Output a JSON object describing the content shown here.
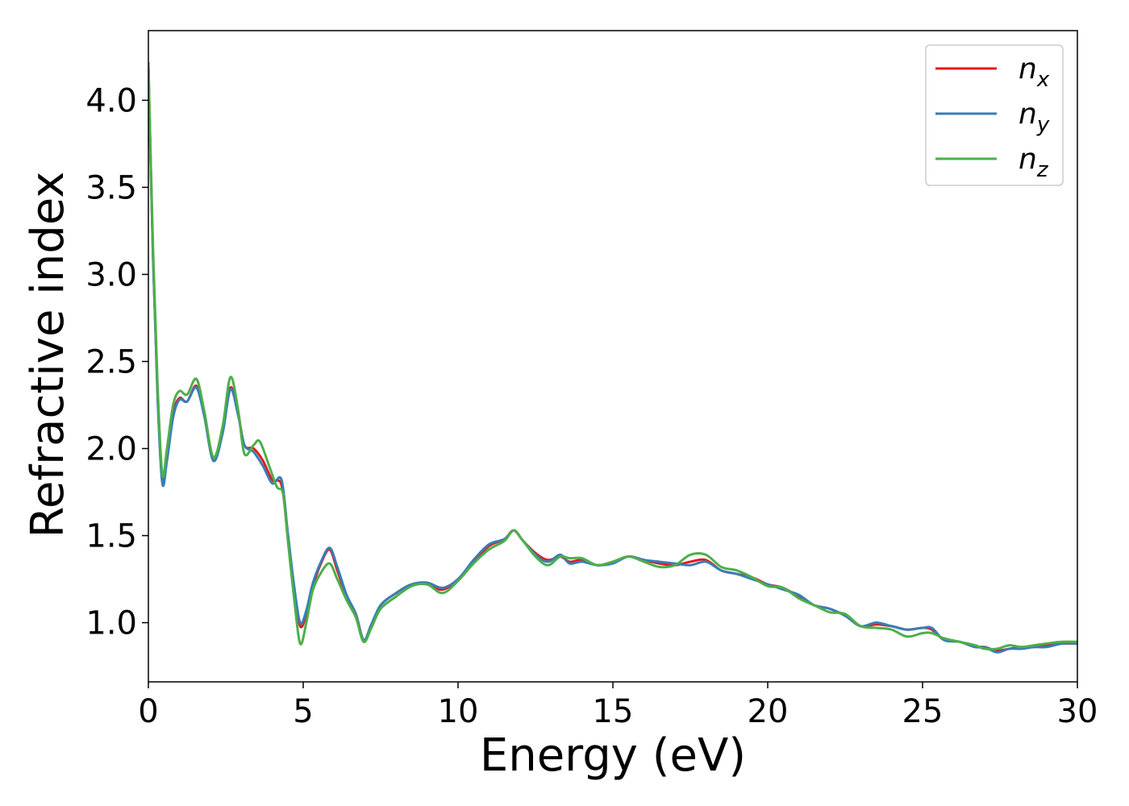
{
  "chart_data": {
    "type": "line",
    "title": "",
    "xlabel": "Energy (eV)",
    "ylabel": "Refractive index",
    "xlim": [
      0,
      30
    ],
    "ylim": [
      0.66,
      4.4
    ],
    "xticks": [
      0,
      5,
      10,
      15,
      20,
      25,
      30
    ],
    "yticks": [
      1.0,
      1.5,
      2.0,
      2.5,
      3.0,
      3.5,
      4.0
    ],
    "grid": false,
    "legend_position": "top-right",
    "series": [
      {
        "name": "n",
        "subscript": "x",
        "color": "#e41a1c",
        "points": [
          [
            0,
            4.2
          ],
          [
            0.15,
            3.1
          ],
          [
            0.3,
            2.3
          ],
          [
            0.45,
            1.82
          ],
          [
            0.6,
            1.95
          ],
          [
            0.8,
            2.2
          ],
          [
            1.0,
            2.29
          ],
          [
            1.25,
            2.27
          ],
          [
            1.55,
            2.36
          ],
          [
            1.8,
            2.2
          ],
          [
            2.1,
            1.93
          ],
          [
            2.4,
            2.1
          ],
          [
            2.65,
            2.35
          ],
          [
            2.9,
            2.2
          ],
          [
            3.1,
            2.02
          ],
          [
            3.4,
            2.0
          ],
          [
            3.7,
            1.93
          ],
          [
            4.0,
            1.82
          ],
          [
            4.3,
            1.79
          ],
          [
            4.5,
            1.5
          ],
          [
            4.7,
            1.2
          ],
          [
            4.9,
            0.98
          ],
          [
            5.1,
            1.05
          ],
          [
            5.3,
            1.2
          ],
          [
            5.55,
            1.33
          ],
          [
            5.85,
            1.42
          ],
          [
            6.1,
            1.3
          ],
          [
            6.4,
            1.15
          ],
          [
            6.7,
            1.05
          ],
          [
            6.95,
            0.9
          ],
          [
            7.2,
            0.98
          ],
          [
            7.5,
            1.1
          ],
          [
            8.0,
            1.17
          ],
          [
            8.5,
            1.22
          ],
          [
            9.0,
            1.22
          ],
          [
            9.5,
            1.19
          ],
          [
            10.0,
            1.25
          ],
          [
            10.5,
            1.35
          ],
          [
            11.0,
            1.44
          ],
          [
            11.5,
            1.48
          ],
          [
            11.8,
            1.53
          ],
          [
            12.1,
            1.47
          ],
          [
            12.5,
            1.4
          ],
          [
            12.9,
            1.36
          ],
          [
            13.3,
            1.38
          ],
          [
            13.6,
            1.35
          ],
          [
            14.0,
            1.36
          ],
          [
            14.5,
            1.33
          ],
          [
            15.0,
            1.35
          ],
          [
            15.5,
            1.38
          ],
          [
            16.0,
            1.36
          ],
          [
            16.5,
            1.34
          ],
          [
            17.0,
            1.33
          ],
          [
            17.5,
            1.35
          ],
          [
            18.0,
            1.36
          ],
          [
            18.5,
            1.3
          ],
          [
            19.0,
            1.28
          ],
          [
            19.5,
            1.26
          ],
          [
            20.0,
            1.22
          ],
          [
            20.5,
            1.2
          ],
          [
            21.0,
            1.15
          ],
          [
            21.5,
            1.1
          ],
          [
            22.0,
            1.08
          ],
          [
            22.5,
            1.04
          ],
          [
            23.0,
            0.98
          ],
          [
            23.5,
            0.99
          ],
          [
            24.0,
            0.98
          ],
          [
            24.5,
            0.96
          ],
          [
            25.0,
            0.97
          ],
          [
            25.3,
            0.96
          ],
          [
            25.7,
            0.9
          ],
          [
            26.2,
            0.89
          ],
          [
            26.7,
            0.86
          ],
          [
            27.0,
            0.86
          ],
          [
            27.4,
            0.84
          ],
          [
            27.8,
            0.85
          ],
          [
            28.2,
            0.86
          ],
          [
            28.6,
            0.86
          ],
          [
            29.0,
            0.87
          ],
          [
            29.5,
            0.88
          ],
          [
            30.0,
            0.88
          ]
        ]
      },
      {
        "name": "n",
        "subscript": "y",
        "color": "#377eb8",
        "points": [
          [
            0,
            4.2
          ],
          [
            0.15,
            3.1
          ],
          [
            0.3,
            2.28
          ],
          [
            0.45,
            1.8
          ],
          [
            0.6,
            1.93
          ],
          [
            0.8,
            2.18
          ],
          [
            1.0,
            2.28
          ],
          [
            1.25,
            2.27
          ],
          [
            1.55,
            2.35
          ],
          [
            1.8,
            2.19
          ],
          [
            2.1,
            1.93
          ],
          [
            2.4,
            2.09
          ],
          [
            2.65,
            2.34
          ],
          [
            2.9,
            2.19
          ],
          [
            3.1,
            2.02
          ],
          [
            3.4,
            1.98
          ],
          [
            3.7,
            1.9
          ],
          [
            4.0,
            1.8
          ],
          [
            4.3,
            1.82
          ],
          [
            4.5,
            1.52
          ],
          [
            4.7,
            1.22
          ],
          [
            4.9,
            1.0
          ],
          [
            5.1,
            1.07
          ],
          [
            5.3,
            1.22
          ],
          [
            5.55,
            1.34
          ],
          [
            5.85,
            1.43
          ],
          [
            6.1,
            1.32
          ],
          [
            6.4,
            1.16
          ],
          [
            6.7,
            1.05
          ],
          [
            6.95,
            0.9
          ],
          [
            7.2,
            0.99
          ],
          [
            7.5,
            1.1
          ],
          [
            8.0,
            1.17
          ],
          [
            8.5,
            1.22
          ],
          [
            9.0,
            1.23
          ],
          [
            9.5,
            1.2
          ],
          [
            10.0,
            1.25
          ],
          [
            10.5,
            1.36
          ],
          [
            11.0,
            1.45
          ],
          [
            11.5,
            1.48
          ],
          [
            11.8,
            1.53
          ],
          [
            12.1,
            1.47
          ],
          [
            12.5,
            1.39
          ],
          [
            12.9,
            1.35
          ],
          [
            13.3,
            1.39
          ],
          [
            13.6,
            1.34
          ],
          [
            14.0,
            1.35
          ],
          [
            14.5,
            1.33
          ],
          [
            15.0,
            1.34
          ],
          [
            15.5,
            1.38
          ],
          [
            16.0,
            1.36
          ],
          [
            16.5,
            1.35
          ],
          [
            17.0,
            1.34
          ],
          [
            17.5,
            1.33
          ],
          [
            18.0,
            1.35
          ],
          [
            18.5,
            1.3
          ],
          [
            19.0,
            1.28
          ],
          [
            19.5,
            1.25
          ],
          [
            20.0,
            1.22
          ],
          [
            20.5,
            1.19
          ],
          [
            21.0,
            1.16
          ],
          [
            21.5,
            1.1
          ],
          [
            22.0,
            1.08
          ],
          [
            22.5,
            1.04
          ],
          [
            23.0,
            0.98
          ],
          [
            23.5,
            1.0
          ],
          [
            24.0,
            0.98
          ],
          [
            24.5,
            0.96
          ],
          [
            25.0,
            0.97
          ],
          [
            25.3,
            0.97
          ],
          [
            25.7,
            0.9
          ],
          [
            26.2,
            0.89
          ],
          [
            26.7,
            0.86
          ],
          [
            27.0,
            0.86
          ],
          [
            27.4,
            0.83
          ],
          [
            27.8,
            0.85
          ],
          [
            28.2,
            0.85
          ],
          [
            28.6,
            0.86
          ],
          [
            29.0,
            0.86
          ],
          [
            29.5,
            0.88
          ],
          [
            30.0,
            0.88
          ]
        ]
      },
      {
        "name": "n",
        "subscript": "z",
        "color": "#4daf4a",
        "points": [
          [
            0,
            4.22
          ],
          [
            0.15,
            3.15
          ],
          [
            0.3,
            2.35
          ],
          [
            0.45,
            1.85
          ],
          [
            0.6,
            2.0
          ],
          [
            0.8,
            2.25
          ],
          [
            1.0,
            2.33
          ],
          [
            1.25,
            2.31
          ],
          [
            1.55,
            2.4
          ],
          [
            1.8,
            2.22
          ],
          [
            2.1,
            1.95
          ],
          [
            2.4,
            2.13
          ],
          [
            2.65,
            2.41
          ],
          [
            2.9,
            2.22
          ],
          [
            3.1,
            1.97
          ],
          [
            3.4,
            2.02
          ],
          [
            3.6,
            2.04
          ],
          [
            3.9,
            1.9
          ],
          [
            4.15,
            1.78
          ],
          [
            4.35,
            1.74
          ],
          [
            4.5,
            1.48
          ],
          [
            4.7,
            1.15
          ],
          [
            4.9,
            0.88
          ],
          [
            5.1,
            1.0
          ],
          [
            5.3,
            1.18
          ],
          [
            5.55,
            1.28
          ],
          [
            5.85,
            1.34
          ],
          [
            6.1,
            1.25
          ],
          [
            6.4,
            1.13
          ],
          [
            6.7,
            1.03
          ],
          [
            6.95,
            0.89
          ],
          [
            7.2,
            0.97
          ],
          [
            7.5,
            1.08
          ],
          [
            8.0,
            1.15
          ],
          [
            8.5,
            1.21
          ],
          [
            9.0,
            1.22
          ],
          [
            9.5,
            1.17
          ],
          [
            10.0,
            1.24
          ],
          [
            10.5,
            1.34
          ],
          [
            11.0,
            1.42
          ],
          [
            11.5,
            1.47
          ],
          [
            11.8,
            1.53
          ],
          [
            12.1,
            1.47
          ],
          [
            12.5,
            1.38
          ],
          [
            12.9,
            1.33
          ],
          [
            13.3,
            1.38
          ],
          [
            13.6,
            1.37
          ],
          [
            14.0,
            1.37
          ],
          [
            14.5,
            1.33
          ],
          [
            15.0,
            1.35
          ],
          [
            15.5,
            1.38
          ],
          [
            16.0,
            1.35
          ],
          [
            16.5,
            1.32
          ],
          [
            17.0,
            1.33
          ],
          [
            17.5,
            1.39
          ],
          [
            18.0,
            1.39
          ],
          [
            18.5,
            1.32
          ],
          [
            19.0,
            1.3
          ],
          [
            19.5,
            1.26
          ],
          [
            20.0,
            1.21
          ],
          [
            20.5,
            1.2
          ],
          [
            21.0,
            1.14
          ],
          [
            21.5,
            1.1
          ],
          [
            22.0,
            1.06
          ],
          [
            22.5,
            1.05
          ],
          [
            23.0,
            0.98
          ],
          [
            23.5,
            0.97
          ],
          [
            24.0,
            0.96
          ],
          [
            24.5,
            0.92
          ],
          [
            25.0,
            0.94
          ],
          [
            25.3,
            0.94
          ],
          [
            25.7,
            0.91
          ],
          [
            26.2,
            0.89
          ],
          [
            26.7,
            0.87
          ],
          [
            27.0,
            0.85
          ],
          [
            27.4,
            0.85
          ],
          [
            27.8,
            0.87
          ],
          [
            28.2,
            0.86
          ],
          [
            28.6,
            0.87
          ],
          [
            29.0,
            0.88
          ],
          [
            29.5,
            0.89
          ],
          [
            30.0,
            0.89
          ]
        ]
      }
    ]
  }
}
